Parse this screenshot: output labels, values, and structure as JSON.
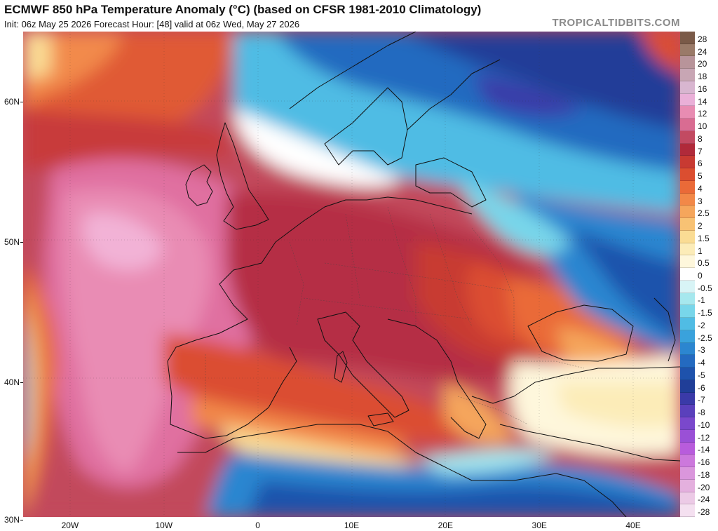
{
  "header": {
    "title": "ECMWF 850 hPa Temperature Anomaly (°C) (based on CFSR 1981-2010 Climatology)",
    "subtitle": "Init: 06z May 25 2026   Forecast Hour: [48]   valid at 06z Wed, May 27 2026",
    "brand": "TROPICALTIDBITS.COM"
  },
  "map": {
    "variable": "850 hPa temperature anomaly",
    "units": "°C",
    "lat_range": [
      30,
      65
    ],
    "lon_range": [
      -25,
      45
    ],
    "lat_labels": [
      {
        "value": 60,
        "text": "60N"
      },
      {
        "value": 50,
        "text": "50N"
      },
      {
        "value": 40,
        "text": "40N"
      },
      {
        "value": 30,
        "text": "30N"
      }
    ],
    "lon_labels": [
      {
        "value": -20,
        "text": "20W"
      },
      {
        "value": -10,
        "text": "10W"
      },
      {
        "value": 0,
        "text": "0"
      },
      {
        "value": 10,
        "text": "10E"
      },
      {
        "value": 20,
        "text": "20E"
      },
      {
        "value": 30,
        "text": "30E"
      },
      {
        "value": 40,
        "text": "40E"
      }
    ]
  },
  "colorbar": {
    "levels": [
      {
        "label": "28",
        "color": "#7a5a48"
      },
      {
        "label": "24",
        "color": "#9a7a68"
      },
      {
        "label": "20",
        "color": "#b8949a"
      },
      {
        "label": "18",
        "color": "#c8a6b4"
      },
      {
        "label": "16",
        "color": "#d8b6d0"
      },
      {
        "label": "14",
        "color": "#eab0d8"
      },
      {
        "label": "12",
        "color": "#e88cb2"
      },
      {
        "label": "10",
        "color": "#d96c92"
      },
      {
        "label": "8",
        "color": "#c24a62"
      },
      {
        "label": "7",
        "color": "#b02a3a"
      },
      {
        "label": "6",
        "color": "#c83a32"
      },
      {
        "label": "5",
        "color": "#db4e30"
      },
      {
        "label": "4",
        "color": "#ea6a38"
      },
      {
        "label": "3",
        "color": "#f28848"
      },
      {
        "label": "2.5",
        "color": "#f5a65c"
      },
      {
        "label": "2",
        "color": "#f8c274"
      },
      {
        "label": "1.5",
        "color": "#fadc94"
      },
      {
        "label": "1",
        "color": "#fcecb8"
      },
      {
        "label": "0.5",
        "color": "#fef7dc"
      },
      {
        "label": "0",
        "color": "#ffffff"
      },
      {
        "label": "-0.5",
        "color": "#d8f4f6"
      },
      {
        "label": "-1",
        "color": "#a6e8ee"
      },
      {
        "label": "-1.5",
        "color": "#78d6ea"
      },
      {
        "label": "-2",
        "color": "#50bce4"
      },
      {
        "label": "-2.5",
        "color": "#3aa2dc"
      },
      {
        "label": "-3",
        "color": "#2c86d0"
      },
      {
        "label": "-4",
        "color": "#246ac0"
      },
      {
        "label": "-5",
        "color": "#1e52ac"
      },
      {
        "label": "-6",
        "color": "#203e98"
      },
      {
        "label": "-7",
        "color": "#3a3aa8"
      },
      {
        "label": "-8",
        "color": "#5a40bc"
      },
      {
        "label": "-10",
        "color": "#7a48cc"
      },
      {
        "label": "-12",
        "color": "#9a50d6"
      },
      {
        "label": "-14",
        "color": "#b85cdc"
      },
      {
        "label": "-16",
        "color": "#cc78dc"
      },
      {
        "label": "-18",
        "color": "#da96dc"
      },
      {
        "label": "-20",
        "color": "#e4b0de"
      },
      {
        "label": "-24",
        "color": "#eccae6"
      },
      {
        "label": "-28",
        "color": "#f4e0f0"
      }
    ]
  },
  "palette": {
    "ocean_base": "#c24a5c",
    "hot_core": "#a8283c",
    "pink_core": "#e88cb2",
    "light_pink": "#f0b0d4",
    "orange": "#ea6a38",
    "yellow": "#f8c274",
    "white": "#ffffff",
    "light_blue": "#78d6ea",
    "mid_blue": "#2c86d0",
    "dark_blue": "#1e52ac",
    "navy": "#203e98",
    "violet": "#5a40bc",
    "coast": "#111111"
  }
}
